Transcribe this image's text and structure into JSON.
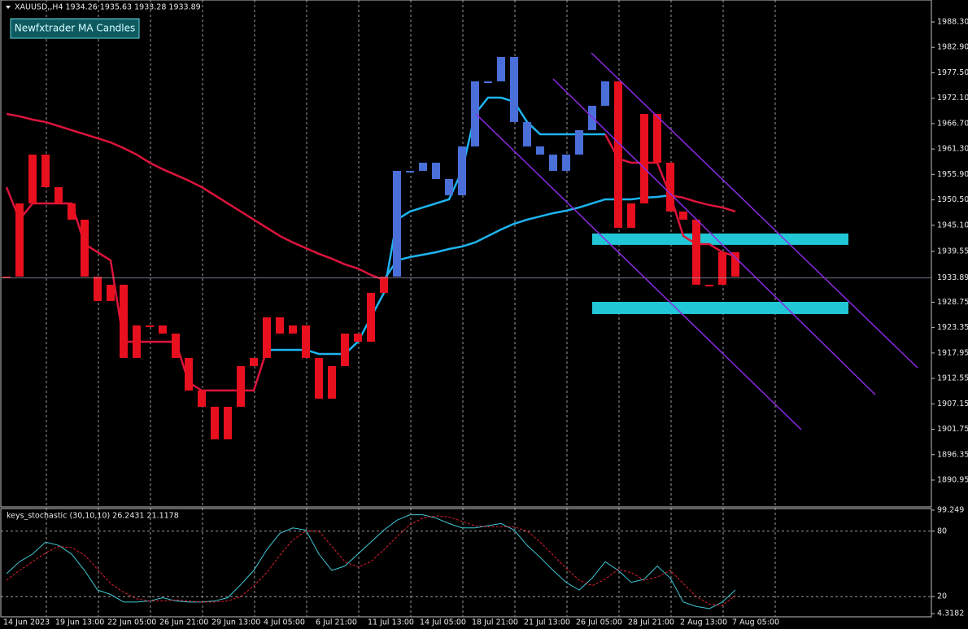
{
  "header": "XAUUSD,,H4  1934.26 1935.63 1933.28 1933.89",
  "button": "Newfxtrader MA Candles",
  "chart_data": [
    {
      "type": "candlestick",
      "categories": [
        "14 Jun 2023",
        null,
        null,
        null,
        "19 Jun 13:00",
        null,
        null,
        null,
        "22 Jun 05:00",
        null,
        null,
        null,
        "26 Jun 21:00",
        null,
        null,
        null,
        "29 Jun 13:00",
        null,
        null,
        null,
        "4 Jul 05:00",
        null,
        null,
        null,
        "6 Jul 21:00",
        null,
        null,
        null,
        "11 Jul 13:00",
        null,
        null,
        null,
        "14 Jul 05:00",
        null,
        null,
        null,
        "18 Jul 21:00",
        null,
        null,
        null,
        "21 Jul 13:00",
        null,
        null,
        null,
        "26 Jul 05:00",
        null,
        null,
        null,
        "28 Jul 21:00",
        null,
        null,
        null,
        "2 Aug 13:00",
        null,
        null,
        null,
        "7 Aug 05:00"
      ],
      "close": [
        1934.19,
        1949.75,
        1960.12,
        1953.2,
        1949.75,
        1946.29,
        1934.19,
        1929.0,
        1932.46,
        1916.9,
        1923.81,
        1923.81,
        1922.08,
        1916.9,
        1909.98,
        1906.52,
        1899.61,
        1906.52,
        1915.17,
        1916.9,
        1925.54,
        1922.08,
        1923.81,
        1916.9,
        1908.25,
        1915.17,
        1922.08,
        1920.35,
        1930.73,
        1934.19,
        1956.66,
        1956.66,
        1958.39,
        1954.93,
        1951.47,
        1961.85,
        1975.68,
        1975.68,
        1980.87,
        1967.04,
        1961.85,
        1960.12,
        1956.66,
        1960.12,
        1965.31,
        1970.49,
        1975.68,
        1944.56,
        1949.75,
        1968.76,
        1958.39,
        1948.02,
        1946.29,
        1932.46,
        1932.46,
        1939.37,
        1934.19
      ],
      "colors": [
        "#e8101e",
        "#e8101e",
        "#e8101e",
        "#e8101e",
        "#e8101e",
        "#e8101e",
        "#e8101e",
        "#e8101e",
        "#e8101e",
        "#e8101e",
        "#e8101e",
        "#e8101e",
        "#e8101e",
        "#e8101e",
        "#e8101e",
        "#e8101e",
        "#e8101e",
        "#e8101e",
        "#e8101e",
        "#e8101e",
        "#e8101e",
        "#e8101e",
        "#e8101e",
        "#e8101e",
        "#e8101e",
        "#e8101e",
        "#e8101e",
        "#e8101e",
        "#e8101e",
        "#e8101e",
        "#4a6fd8",
        "#4a6fd8",
        "#4a6fd8",
        "#4a6fd8",
        "#4a6fd8",
        "#4a6fd8",
        "#4a6fd8",
        "#4a6fd8",
        "#4a6fd8",
        "#4a6fd8",
        "#4a6fd8",
        "#4a6fd8",
        "#4a6fd8",
        "#4a6fd8",
        "#4a6fd8",
        "#4a6fd8",
        "#4a6fd8",
        "#e8101e",
        "#e8101e",
        "#e8101e",
        "#e8101e",
        "#e8101e",
        "#e8101e",
        "#e8101e",
        "#e8101e",
        "#e8101e",
        "#e8101e"
      ],
      "lines": [
        {
          "color": "#dc143c",
          "values": [
            1968.76,
            1968.25,
            1967.55,
            1967.04,
            1966.17,
            1965.31,
            1964.44,
            1963.58,
            1962.71,
            1961.5,
            1960.12,
            1958.39,
            1957.01,
            1955.8,
            1954.58,
            1953.2,
            1951.47,
            1949.75,
            1948.02,
            1946.29,
            1944.56,
            1942.83,
            1941.45,
            1940.24,
            1939.03,
            1937.99,
            1936.78,
            1935.91,
            1934.53,
            1933.49,
            null,
            null,
            null,
            null,
            null,
            null,
            null,
            null,
            null,
            null,
            null,
            null,
            null,
            null,
            null,
            null,
            null,
            null,
            null,
            null,
            null,
            1951.47,
            1950.96,
            1950.09,
            1949.4,
            1948.88,
            1948.02
          ]
        },
        {
          "color": "#1eb4f0",
          "values": [
            null,
            null,
            null,
            null,
            null,
            null,
            null,
            null,
            null,
            null,
            null,
            null,
            null,
            null,
            null,
            null,
            null,
            null,
            null,
            null,
            null,
            null,
            null,
            null,
            null,
            null,
            null,
            null,
            null,
            1933.49,
            1937.64,
            1938.34,
            1938.85,
            1939.37,
            1940.06,
            1940.58,
            1941.45,
            1942.83,
            1944.21,
            1945.42,
            1946.29,
            1946.98,
            1947.67,
            1948.19,
            1948.88,
            1949.75,
            1950.61,
            1950.61,
            1950.61,
            1950.96,
            1951.13,
            1951.47,
            null,
            null,
            null,
            null,
            null
          ]
        },
        {
          "color": "#dc143c",
          "values": [
            1953.2,
            1946.29,
            1949.75,
            1949.75,
            1949.75,
            1949.75,
            1941.1,
            1939.37,
            1937.64,
            1920.35,
            1920.35,
            1920.35,
            1920.35,
            1920.35,
            1911.71,
            1909.98,
            1909.98,
            1909.98,
            1909.98,
            1909.98,
            1918.62,
            null,
            null,
            null,
            null,
            null,
            null,
            null,
            null,
            null,
            null,
            null,
            null,
            null,
            null,
            null,
            null,
            null,
            null,
            null,
            null,
            null,
            null,
            null,
            null,
            null,
            1964.44,
            1959.25,
            1958.39,
            1958.39,
            1958.39,
            1951.47,
            1942.83,
            1941.1,
            1941.1,
            1939.37,
            1938.51
          ]
        },
        {
          "color": "#1eb4f0",
          "values": [
            null,
            null,
            null,
            null,
            null,
            null,
            null,
            null,
            null,
            null,
            null,
            null,
            null,
            null,
            null,
            null,
            null,
            null,
            null,
            null,
            1918.62,
            1918.62,
            1918.62,
            1918.62,
            1917.76,
            1917.76,
            1917.76,
            1920.35,
            1925.54,
            1930.73,
            1946.29,
            1948.02,
            1948.88,
            1949.75,
            1950.61,
            1956.66,
            1968.76,
            1972.22,
            1972.22,
            1971.36,
            1967.04,
            1964.44,
            1964.44,
            1964.44,
            1964.44,
            1964.44,
            1964.44,
            null,
            null,
            null,
            null,
            null,
            null,
            null,
            null,
            null,
            null
          ]
        }
      ],
      "zones": [
        [
          1940.93,
          1943.35
        ],
        [
          1926.23,
          1928.82
        ]
      ],
      "zone_color": "#22c7d6",
      "last_price": 1933.89,
      "ylim": [
        1885.24,
        1992.97
      ],
      "yticks": [
        {
          "value": 1988.3,
          "label": "1988.30"
        },
        {
          "value": 1982.9,
          "label": "1982.90"
        },
        {
          "value": 1977.5,
          "label": "1977.50"
        },
        {
          "value": 1972.1,
          "label": "1972.10"
        },
        {
          "value": 1966.7,
          "label": "1966.70"
        },
        {
          "value": 1961.3,
          "label": "1961.30"
        },
        {
          "value": 1955.9,
          "label": "1955.90"
        },
        {
          "value": 1950.5,
          "label": "1950.50"
        },
        {
          "value": 1945.1,
          "label": "1945.10"
        },
        1939.55,
        1928.75,
        1923.35,
        1917.95,
        1912.55,
        1907.15,
        1901.75,
        1896.35,
        1890.95
      ],
      "grid": true
    },
    {
      "type": "line",
      "title": "keys_stochastic (30,10,10) 26.2431 21.1178",
      "series": [
        {
          "color": "#40c8d8",
          "values": [
            41,
            52,
            59,
            70,
            67,
            59,
            44,
            26,
            22,
            15,
            15,
            16,
            19,
            16,
            15,
            15,
            16,
            19,
            31,
            44,
            63,
            78,
            83,
            81,
            59,
            44,
            48,
            59,
            70,
            81,
            90,
            95,
            95,
            92,
            87,
            83,
            83,
            85,
            87,
            81,
            67,
            56,
            44,
            33,
            26,
            37,
            52,
            44,
            33,
            36,
            48,
            37,
            15,
            11,
            9,
            15,
            26
          ]
        },
        {
          "color": "#e02030",
          "dash": true,
          "values": [
            35,
            44,
            52,
            60,
            66,
            65,
            58,
            45,
            32,
            24,
            18,
            16,
            16,
            17,
            16,
            15,
            15,
            16,
            20,
            30,
            42,
            58,
            72,
            80,
            80,
            66,
            52,
            47,
            52,
            63,
            75,
            86,
            92,
            94,
            93,
            89,
            85,
            84,
            84,
            84,
            80,
            70,
            58,
            46,
            35,
            30,
            36,
            45,
            42,
            35,
            38,
            44,
            32,
            20,
            13,
            12,
            21
          ]
        }
      ],
      "ylim": [
        0,
        100.7
      ],
      "yticks": [
        99.249,
        80,
        20,
        4.3182
      ],
      "levels": [
        80,
        20
      ]
    }
  ]
}
